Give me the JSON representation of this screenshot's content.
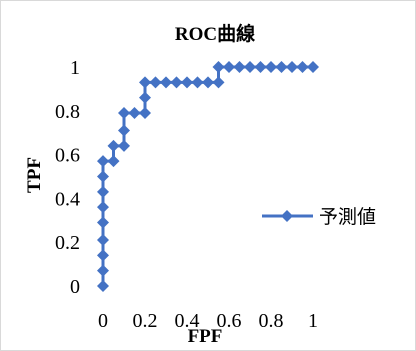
{
  "chart_data": {
    "type": "line",
    "title": "ROC曲線",
    "xlabel": "FPF",
    "ylabel": "TPF",
    "xlim": [
      0,
      1
    ],
    "ylim": [
      0,
      1
    ],
    "x_ticks": [
      "0",
      "0.2",
      "0.4",
      "0.6",
      "0.8",
      "1"
    ],
    "y_ticks": [
      "0",
      "0.2",
      "0.4",
      "0.6",
      "0.8",
      "1"
    ],
    "grid": false,
    "legend_position": "right",
    "series": [
      {
        "name": "予測値",
        "color": "#4472C4",
        "marker": "diamond",
        "x": [
          0,
          0,
          0,
          0,
          0,
          0,
          0,
          0,
          0,
          0.05,
          0.05,
          0.1,
          0.1,
          0.1,
          0.15,
          0.2,
          0.2,
          0.2,
          0.25,
          0.3,
          0.35,
          0.4,
          0.45,
          0.5,
          0.55,
          0.55,
          0.6,
          0.65,
          0.7,
          0.75,
          0.8,
          0.85,
          0.9,
          0.95,
          1
        ],
        "y": [
          0,
          0.07,
          0.14,
          0.21,
          0.29,
          0.36,
          0.43,
          0.5,
          0.57,
          0.57,
          0.64,
          0.64,
          0.71,
          0.79,
          0.79,
          0.79,
          0.86,
          0.93,
          0.93,
          0.93,
          0.93,
          0.93,
          0.93,
          0.93,
          0.93,
          1,
          1,
          1,
          1,
          1,
          1,
          1,
          1,
          1,
          1
        ]
      }
    ]
  }
}
